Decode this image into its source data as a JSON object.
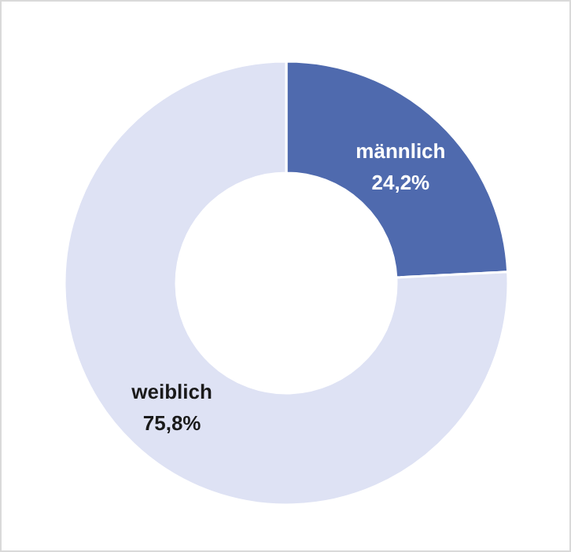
{
  "chart_data": {
    "type": "donut",
    "categories": [
      "männlich",
      "weiblich"
    ],
    "values": [
      24.2,
      75.8
    ],
    "colors": [
      "#4f6aae",
      "#dee2f4"
    ],
    "value_labels": [
      "24,2%",
      "75,8%"
    ]
  }
}
